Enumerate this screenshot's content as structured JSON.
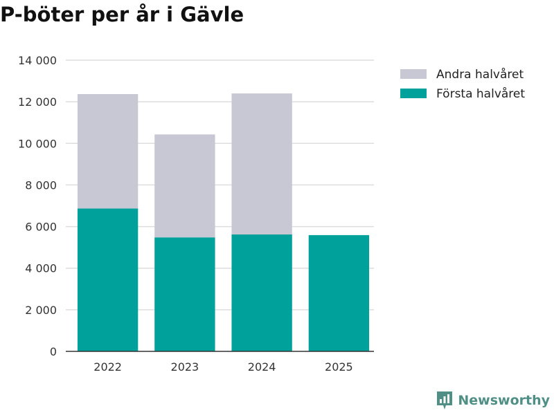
{
  "header": {
    "title": "P-böter per år i Gävle"
  },
  "brand": {
    "name": "Newsworthy",
    "icon": "newsworthy-logo-icon"
  },
  "colors": {
    "first_half": "#00a19a",
    "second_half": "#c8c7d4",
    "grid": "#dddddd",
    "axis": "#333333",
    "brand": "#4f8f86"
  },
  "chart_data": {
    "type": "bar",
    "stacked": true,
    "title": "P-böter per år i Gävle",
    "xlabel": "",
    "ylabel": "",
    "categories": [
      "2022",
      "2023",
      "2024",
      "2025"
    ],
    "series": [
      {
        "name": "Första halvåret",
        "values": [
          6870,
          5480,
          5620,
          5590
        ]
      },
      {
        "name": "Andra halvåret",
        "values": [
          5500,
          4950,
          6780,
          0
        ]
      }
    ],
    "ylim": [
      0,
      14000
    ],
    "yticks": [
      0,
      2000,
      4000,
      6000,
      8000,
      10000,
      12000,
      14000
    ],
    "ytick_labels": [
      "0",
      "2 000",
      "4 000",
      "6 000",
      "8 000",
      "10 000",
      "12 000",
      "14 000"
    ],
    "grid": true,
    "legend_position": "top-right",
    "legend": [
      "Andra halvåret",
      "Första halvåret"
    ]
  }
}
